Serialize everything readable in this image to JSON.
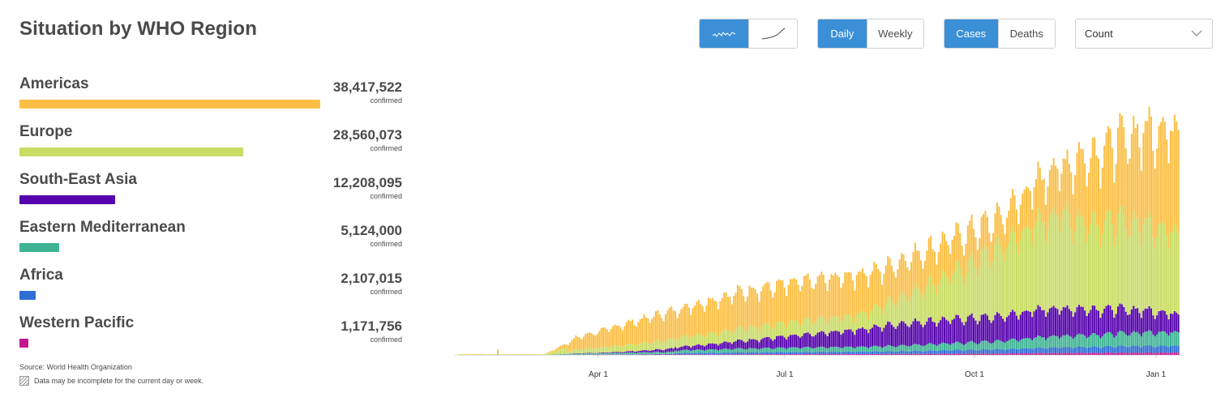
{
  "header": {
    "title": "Situation by WHO Region"
  },
  "toolbar": {
    "mode_group": {
      "buttons": [
        {
          "icon": "sparkline-icon",
          "active": true
        },
        {
          "icon": "cumulative-curve-icon",
          "active": false
        }
      ]
    },
    "period_group": {
      "buttons": [
        {
          "label": "Daily",
          "active": true
        },
        {
          "label": "Weekly",
          "active": false
        }
      ]
    },
    "metric_group": {
      "buttons": [
        {
          "label": "Cases",
          "active": true
        },
        {
          "label": "Deaths",
          "active": false
        }
      ]
    },
    "scale_select": {
      "value": "Count",
      "icon": "chevron-down-icon"
    }
  },
  "regions": [
    {
      "name": "Americas",
      "value": "38,417,522",
      "sub": "confirmed",
      "fraction": 1.0,
      "color": "#fbbf45"
    },
    {
      "name": "Europe",
      "value": "28,560,073",
      "sub": "confirmed",
      "fraction": 0.743,
      "color": "#c9dc64"
    },
    {
      "name": "South-East Asia",
      "value": "12,208,095",
      "sub": "confirmed",
      "fraction": 0.318,
      "color": "#5603ad"
    },
    {
      "name": "Eastern Mediterranean",
      "value": "5,124,000",
      "sub": "confirmed",
      "fraction": 0.133,
      "color": "#3eb493"
    },
    {
      "name": "Africa",
      "value": "2,107,015",
      "sub": "confirmed",
      "fraction": 0.055,
      "color": "#2f6ed3"
    },
    {
      "name": "Western Pacific",
      "value": "1,171,756",
      "sub": "confirmed",
      "fraction": 0.03,
      "color": "#c2188e"
    }
  ],
  "footer": {
    "source": "Source: World Health Organization",
    "note": "Data may be incomplete for the current day or week."
  },
  "chart_data": {
    "type": "bar",
    "stacked": true,
    "x_tick_labels": [
      "Apr 1",
      "Jul 1",
      "Oct 1",
      "Jan 1"
    ],
    "colors": {
      "Americas": "#fbbf45",
      "Europe": "#c9dc64",
      "South-East Asia": "#5603ad",
      "Eastern Mediterranean": "#3eb493",
      "Africa": "#2f6ed3",
      "Western Pacific": "#c2188e"
    },
    "grid": false,
    "legend": "none",
    "note": "Daily new cases stacked by WHO region; values approximated relative to peak (1.0)."
  }
}
